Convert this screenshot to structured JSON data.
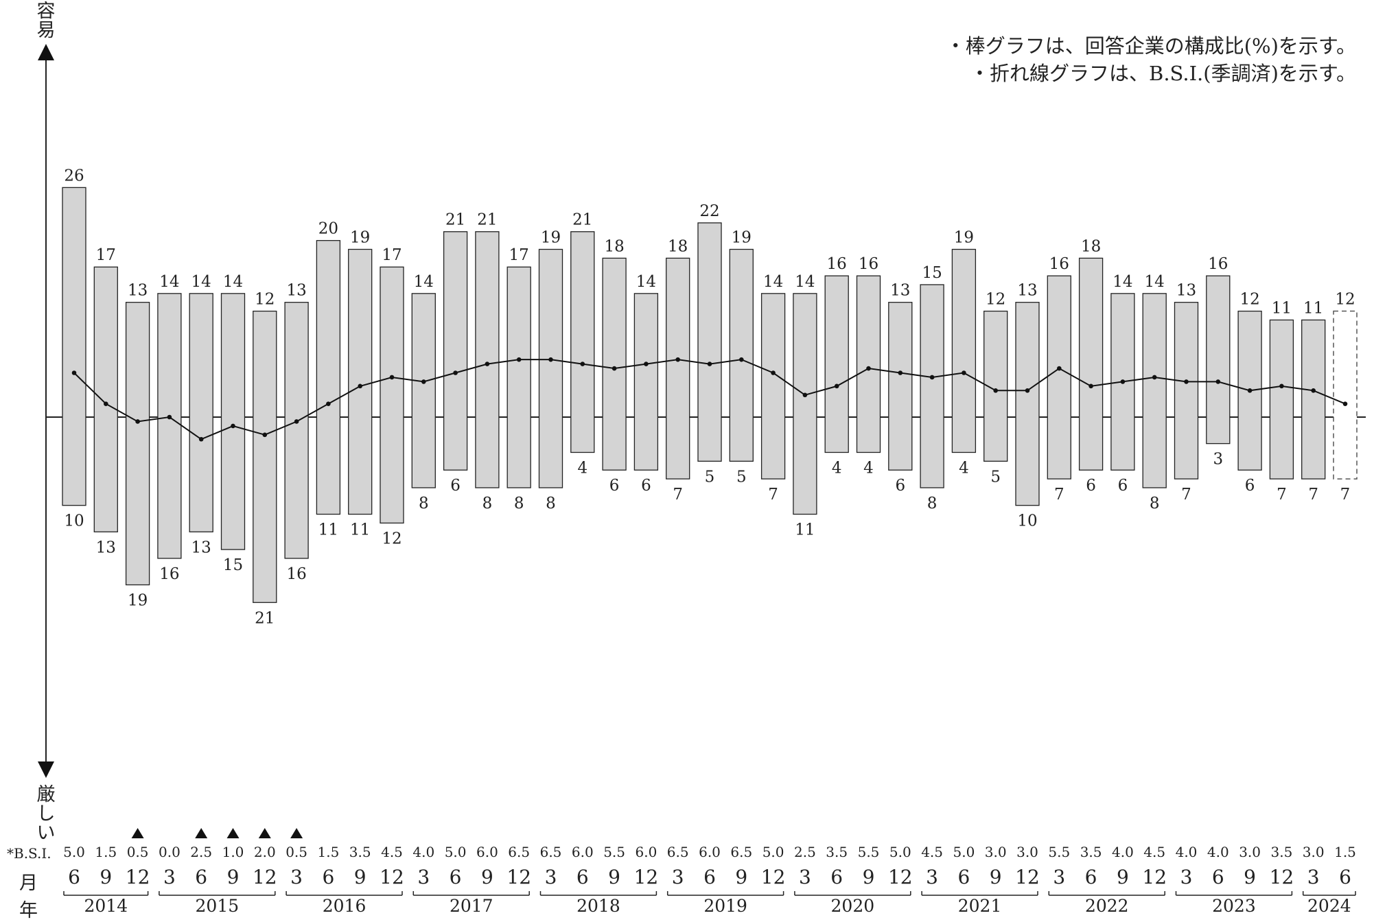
{
  "notes": {
    "line1": "・棒グラフは、回答企業の構成比(%)を示す。",
    "line2": "・折れ線グラフは、B.S.I.(季調済)を示す。"
  },
  "axis": {
    "top_label_1": "容",
    "top_label_2": "易",
    "bottom_label_1": "厳",
    "bottom_label_2": "し",
    "bottom_label_3": "い"
  },
  "row_labels": {
    "bsi": "*B.S.I.",
    "month": "月",
    "year": "年"
  },
  "colors": {
    "bar_fill": "#d4d4d4",
    "bar_stroke": "#222222",
    "line": "#111111"
  },
  "chart_data": {
    "type": "bar",
    "note": "Diverging stacked bars with B.S.I. line overlay",
    "categories": [
      "2014-6",
      "2014-9",
      "2014-12",
      "2015-3",
      "2015-6",
      "2015-9",
      "2015-12",
      "2016-3",
      "2016-6",
      "2016-9",
      "2016-12",
      "2017-3",
      "2017-6",
      "2017-9",
      "2017-12",
      "2018-3",
      "2018-6",
      "2018-9",
      "2018-12",
      "2019-3",
      "2019-6",
      "2019-9",
      "2019-12",
      "2020-3",
      "2020-6",
      "2020-9",
      "2020-12",
      "2021-3",
      "2021-6",
      "2021-9",
      "2021-12",
      "2022-3",
      "2022-6",
      "2022-9",
      "2022-12",
      "2023-3",
      "2023-6",
      "2023-9",
      "2023-12",
      "2024-3",
      "2024-6"
    ],
    "months": [
      "6",
      "9",
      "12",
      "3",
      "6",
      "9",
      "12",
      "3",
      "6",
      "9",
      "12",
      "3",
      "6",
      "9",
      "12",
      "3",
      "6",
      "9",
      "12",
      "3",
      "6",
      "9",
      "12",
      "3",
      "6",
      "9",
      "12",
      "3",
      "6",
      "9",
      "12",
      "3",
      "6",
      "9",
      "12",
      "3",
      "6",
      "9",
      "12",
      "3",
      "6"
    ],
    "years": [
      {
        "label": "2014",
        "start": 0,
        "end": 2
      },
      {
        "label": "2015",
        "start": 3,
        "end": 6
      },
      {
        "label": "2016",
        "start": 7,
        "end": 10
      },
      {
        "label": "2017",
        "start": 11,
        "end": 14
      },
      {
        "label": "2018",
        "start": 15,
        "end": 18
      },
      {
        "label": "2019",
        "start": 19,
        "end": 22
      },
      {
        "label": "2020",
        "start": 23,
        "end": 26
      },
      {
        "label": "2021",
        "start": 27,
        "end": 30
      },
      {
        "label": "2022",
        "start": 31,
        "end": 34
      },
      {
        "label": "2023",
        "start": 35,
        "end": 38
      },
      {
        "label": "2024",
        "start": 39,
        "end": 40
      }
    ],
    "series": [
      {
        "name": "容易",
        "values": [
          26,
          17,
          13,
          14,
          14,
          14,
          12,
          13,
          20,
          19,
          17,
          14,
          21,
          21,
          17,
          19,
          21,
          18,
          14,
          18,
          22,
          19,
          14,
          14,
          16,
          16,
          13,
          15,
          19,
          12,
          13,
          16,
          18,
          14,
          14,
          13,
          16,
          12,
          11,
          11,
          12
        ]
      },
      {
        "name": "厳しい",
        "values": [
          10,
          13,
          19,
          16,
          13,
          15,
          21,
          16,
          11,
          11,
          12,
          8,
          6,
          8,
          8,
          8,
          4,
          6,
          6,
          7,
          5,
          5,
          7,
          11,
          4,
          4,
          6,
          8,
          4,
          5,
          10,
          7,
          6,
          6,
          8,
          7,
          3,
          6,
          7,
          7,
          7
        ]
      },
      {
        "name": "B.S.I.",
        "values": [
          5.0,
          1.5,
          -0.5,
          0.0,
          -2.5,
          -1.0,
          -2.0,
          -0.5,
          1.5,
          3.5,
          4.5,
          4.0,
          5.0,
          6.0,
          6.5,
          6.5,
          6.0,
          5.5,
          6.0,
          6.5,
          6.0,
          6.5,
          5.0,
          2.5,
          3.5,
          5.5,
          5.0,
          4.5,
          5.0,
          3.0,
          3.0,
          5.5,
          3.5,
          4.0,
          4.5,
          4.0,
          4.0,
          3.0,
          3.5,
          3.0,
          1.5
        ]
      }
    ],
    "bsi_labels": [
      "5.0",
      "1.5",
      "0.5",
      "0.0",
      "2.5",
      "1.0",
      "2.0",
      "0.5",
      "1.5",
      "3.5",
      "4.5",
      "4.0",
      "5.0",
      "6.0",
      "6.5",
      "6.5",
      "6.0",
      "5.5",
      "6.0",
      "6.5",
      "6.0",
      "6.5",
      "5.0",
      "2.5",
      "3.5",
      "5.5",
      "5.0",
      "4.5",
      "5.0",
      "3.0",
      "3.0",
      "5.5",
      "3.5",
      "4.0",
      "4.5",
      "4.0",
      "4.0",
      "3.0",
      "3.5",
      "3.0",
      "1.5"
    ],
    "bsi_negative": [
      false,
      false,
      true,
      false,
      true,
      true,
      true,
      true,
      false,
      false,
      false,
      false,
      false,
      false,
      false,
      false,
      false,
      false,
      false,
      false,
      false,
      false,
      false,
      false,
      false,
      false,
      false,
      false,
      false,
      false,
      false,
      false,
      false,
      false,
      false,
      false,
      false,
      false,
      false,
      false,
      false
    ],
    "forecast": [
      false,
      false,
      false,
      false,
      false,
      false,
      false,
      false,
      false,
      false,
      false,
      false,
      false,
      false,
      false,
      false,
      false,
      false,
      false,
      false,
      false,
      false,
      false,
      false,
      false,
      false,
      false,
      false,
      false,
      false,
      false,
      false,
      false,
      false,
      false,
      false,
      false,
      false,
      false,
      false,
      true
    ],
    "xlabel": "",
    "ylabel": ""
  }
}
